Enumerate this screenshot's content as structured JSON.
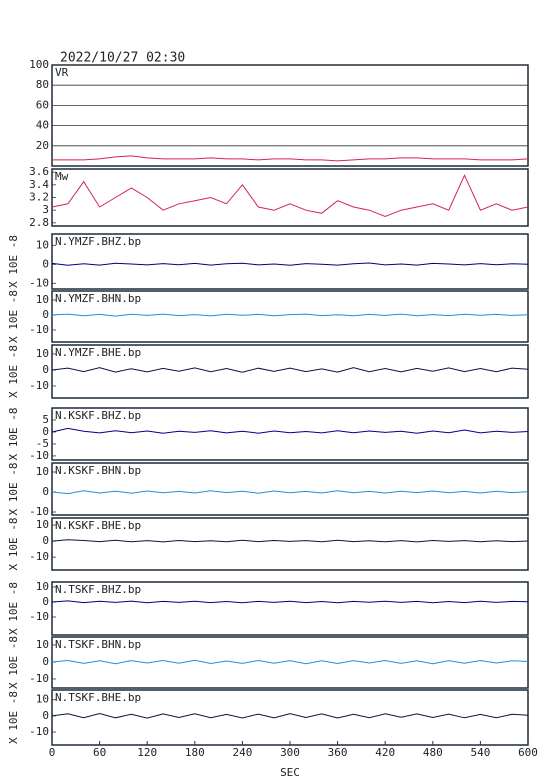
{
  "chart_data": [
    {
      "type": "line",
      "title": "2022/10/27 02:30",
      "label": "VR",
      "color": "#d6244e",
      "grid": true,
      "x": [
        0,
        20,
        40,
        60,
        80,
        100,
        120,
        140,
        160,
        180,
        200,
        220,
        240,
        260,
        280,
        300,
        320,
        340,
        360,
        380,
        400,
        420,
        440,
        460,
        480,
        500,
        520,
        540,
        560,
        580,
        600
      ],
      "values": [
        6,
        6,
        6,
        7,
        9,
        10,
        8,
        7,
        7,
        7,
        8,
        7,
        7,
        6,
        7,
        7,
        6,
        6,
        5,
        6,
        7,
        7,
        8,
        8,
        7,
        7,
        7,
        6,
        6,
        6,
        7
      ],
      "ylim": [
        0,
        100
      ],
      "yticks": [
        20,
        40,
        60,
        80,
        100
      ]
    },
    {
      "type": "line",
      "label": "Mw",
      "color": "#d6244e",
      "x": [
        0,
        20,
        40,
        60,
        80,
        100,
        120,
        140,
        160,
        180,
        200,
        220,
        240,
        260,
        280,
        300,
        320,
        340,
        360,
        380,
        400,
        420,
        440,
        460,
        480,
        500,
        520,
        540,
        560,
        580,
        600
      ],
      "values": [
        3.05,
        3.1,
        3.45,
        3.05,
        3.2,
        3.35,
        3.2,
        3.0,
        3.1,
        3.15,
        3.2,
        3.1,
        3.4,
        3.05,
        3.0,
        3.1,
        3.0,
        2.95,
        3.15,
        3.05,
        3.0,
        2.9,
        3.0,
        3.05,
        3.1,
        3.0,
        3.55,
        3.0,
        3.1,
        3.0,
        3.05
      ],
      "ylim": [
        2.75,
        3.65
      ],
      "yticks": [
        2.8,
        3.0,
        3.2,
        3.4,
        3.6
      ]
    },
    {
      "type": "line",
      "label": "N.YMZF.BHZ.bp",
      "ylabel": "X 10E -8",
      "color": "#00008b",
      "x": [
        0,
        20,
        40,
        60,
        80,
        100,
        120,
        140,
        160,
        180,
        200,
        220,
        240,
        260,
        280,
        300,
        320,
        340,
        360,
        380,
        400,
        420,
        440,
        460,
        480,
        500,
        520,
        540,
        560,
        580,
        600
      ],
      "values": [
        0.5,
        -0.5,
        0.3,
        -0.4,
        0.6,
        0.2,
        -0.3,
        0.4,
        -0.2,
        0.5,
        -0.4,
        0.3,
        0.6,
        -0.3,
        0.2,
        -0.5,
        0.4,
        0.1,
        -0.4,
        0.3,
        0.7,
        -0.3,
        0.2,
        -0.4,
        0.5,
        0.2,
        -0.3,
        0.4,
        -0.2,
        0.3,
        0.1
      ],
      "ylim": [
        -13,
        16
      ],
      "yticks": [
        -10,
        0,
        10
      ]
    },
    {
      "type": "line",
      "label": "N.YMZF.BHN.bp",
      "ylabel": "X 10E -8",
      "color": "#1f8fd8",
      "x": [
        0,
        20,
        40,
        60,
        80,
        100,
        120,
        140,
        160,
        180,
        200,
        220,
        240,
        260,
        280,
        300,
        320,
        340,
        360,
        380,
        400,
        420,
        440,
        460,
        480,
        500,
        520,
        540,
        560,
        580,
        600
      ],
      "values": [
        0,
        0.6,
        -0.5,
        0.4,
        -0.7,
        0.5,
        -0.3,
        0.6,
        -0.4,
        0.3,
        -0.6,
        0.5,
        -0.2,
        0.4,
        -0.5,
        0.3,
        0.6,
        -0.4,
        0.2,
        -0.5,
        0.4,
        -0.3,
        0.6,
        -0.5,
        0.3,
        -0.4,
        0.5,
        -0.2,
        0.4,
        -0.3,
        0.2
      ],
      "ylim": [
        -18,
        16
      ],
      "yticks": [
        -10,
        0,
        10
      ]
    },
    {
      "type": "line",
      "label": "N.YMZF.BHE.bp",
      "ylabel": "X 10E -8",
      "color": "#101040",
      "x": [
        0,
        20,
        40,
        60,
        80,
        100,
        120,
        140,
        160,
        180,
        200,
        220,
        240,
        260,
        280,
        300,
        320,
        340,
        360,
        380,
        400,
        420,
        440,
        460,
        480,
        500,
        520,
        540,
        560,
        580,
        600
      ],
      "values": [
        0,
        1.2,
        -1.0,
        1.5,
        -1.3,
        0.8,
        -1.2,
        1.0,
        -0.8,
        1.3,
        -1.1,
        0.9,
        -1.4,
        1.1,
        -0.9,
        1.2,
        -1.0,
        0.7,
        -1.3,
        1.4,
        -1.1,
        0.9,
        -1.2,
        1.0,
        -0.8,
        1.3,
        -1.0,
        0.9,
        -1.1,
        1.2,
        0.5
      ],
      "ylim": [
        -17.5,
        15.6
      ],
      "yticks": [
        -10,
        0,
        10
      ]
    },
    {
      "type": "line",
      "label": "N.KSKF.BHZ.bp",
      "ylabel": "X 10E -8",
      "color": "#00008b",
      "x": [
        0,
        20,
        40,
        60,
        80,
        100,
        120,
        140,
        160,
        180,
        200,
        220,
        240,
        260,
        280,
        300,
        320,
        340,
        360,
        380,
        400,
        420,
        440,
        460,
        480,
        500,
        520,
        540,
        560,
        580,
        600
      ],
      "values": [
        0,
        1.5,
        0.3,
        -0.4,
        0.5,
        -0.3,
        0.4,
        -0.5,
        0.3,
        -0.2,
        0.5,
        -0.4,
        0.3,
        -0.5,
        0.4,
        -0.3,
        0.2,
        -0.4,
        0.5,
        -0.3,
        0.4,
        -0.2,
        0.3,
        -0.5,
        0.4,
        -0.3,
        0.8,
        -0.4,
        0.3,
        -0.2,
        0.2
      ],
      "ylim": [
        -11.7,
        10
      ],
      "yticks": [
        -10,
        -5,
        0,
        5
      ]
    },
    {
      "type": "line",
      "label": "N.KSKF.BHN.bp",
      "ylabel": "X 10E -8",
      "color": "#1f8fd8",
      "x": [
        0,
        20,
        40,
        60,
        80,
        100,
        120,
        140,
        160,
        180,
        200,
        220,
        240,
        260,
        280,
        300,
        320,
        340,
        360,
        380,
        400,
        420,
        440,
        460,
        480,
        500,
        520,
        540,
        560,
        580,
        600
      ],
      "values": [
        0,
        -0.8,
        0.6,
        -0.5,
        0.4,
        -0.6,
        0.5,
        -0.4,
        0.3,
        -0.5,
        0.6,
        -0.3,
        0.4,
        -0.6,
        0.5,
        -0.4,
        0.3,
        -0.5,
        0.6,
        -0.4,
        0.3,
        -0.5,
        0.4,
        -0.3,
        0.5,
        -0.4,
        0.3,
        -0.5,
        0.4,
        -0.3,
        0.2
      ],
      "ylim": [
        -11.5,
        14.5
      ],
      "yticks": [
        -10,
        0,
        10
      ]
    },
    {
      "type": "line",
      "label": "N.KSKF.BHE.bp",
      "ylabel": "X 10E -8",
      "color": "#101040",
      "x": [
        0,
        20,
        40,
        60,
        80,
        100,
        120,
        140,
        160,
        180,
        200,
        220,
        240,
        260,
        280,
        300,
        320,
        340,
        360,
        380,
        400,
        420,
        440,
        460,
        480,
        500,
        520,
        540,
        560,
        580,
        600
      ],
      "values": [
        0,
        0.8,
        0.4,
        -0.3,
        0.5,
        -0.4,
        0.3,
        -0.5,
        0.4,
        -0.3,
        0.2,
        -0.4,
        0.5,
        -0.3,
        0.4,
        -0.2,
        0.3,
        -0.4,
        0.5,
        -0.3,
        0.2,
        -0.4,
        0.3,
        -0.5,
        0.4,
        -0.2,
        0.3,
        -0.4,
        0.2,
        -0.3,
        0.1
      ],
      "ylim": [
        -18,
        14.4
      ],
      "yticks": [
        -10,
        0,
        10
      ]
    },
    {
      "type": "line",
      "label": "N.TSKF.BHZ.bp",
      "ylabel": "X 10E -8",
      "color": "#00008b",
      "x": [
        0,
        20,
        40,
        60,
        80,
        100,
        120,
        140,
        160,
        180,
        200,
        220,
        240,
        260,
        280,
        300,
        320,
        340,
        360,
        380,
        400,
        420,
        440,
        460,
        480,
        500,
        520,
        540,
        560,
        580,
        600
      ],
      "values": [
        0,
        0.7,
        -0.4,
        0.5,
        -0.3,
        0.6,
        -0.5,
        0.4,
        -0.3,
        0.5,
        -0.4,
        0.3,
        -0.5,
        0.4,
        -0.3,
        0.5,
        -0.4,
        0.3,
        -0.5,
        0.4,
        -0.2,
        0.5,
        -0.3,
        0.4,
        -0.5,
        0.3,
        -0.4,
        0.5,
        -0.3,
        0.4,
        0.1
      ],
      "ylim": [
        -22,
        13.3
      ],
      "yticks": [
        -10,
        0,
        10
      ]
    },
    {
      "type": "line",
      "label": "N.TSKF.BHN.bp",
      "ylabel": "X 10E -8",
      "color": "#1f8fd8",
      "x": [
        0,
        20,
        40,
        60,
        80,
        100,
        120,
        140,
        160,
        180,
        200,
        220,
        240,
        260,
        280,
        300,
        320,
        340,
        360,
        380,
        400,
        420,
        440,
        460,
        480,
        500,
        520,
        540,
        560,
        580,
        600
      ],
      "values": [
        0,
        0.9,
        -0.8,
        0.7,
        -1.0,
        0.8,
        -0.6,
        0.9,
        -0.7,
        1.0,
        -0.9,
        0.6,
        -0.8,
        0.9,
        -0.7,
        0.8,
        -1.0,
        0.7,
        -0.9,
        0.8,
        -0.6,
        0.9,
        -0.8,
        0.7,
        -1.0,
        0.8,
        -0.7,
        0.9,
        -0.6,
        0.7,
        0.3
      ],
      "ylim": [
        -15.3,
        14.7
      ],
      "yticks": [
        -10,
        0,
        10
      ]
    },
    {
      "type": "line",
      "label": "N.TSKF.BHE.bp",
      "ylabel": "X 10E -8",
      "color": "#101040",
      "x": [
        0,
        20,
        40,
        60,
        80,
        100,
        120,
        140,
        160,
        180,
        200,
        220,
        240,
        260,
        280,
        300,
        320,
        340,
        360,
        380,
        400,
        420,
        440,
        460,
        480,
        500,
        520,
        540,
        560,
        580,
        600
      ],
      "values": [
        0,
        1.3,
        -1.1,
        1.5,
        -1.2,
        1.0,
        -1.4,
        1.2,
        -1.0,
        1.3,
        -1.1,
        0.9,
        -1.3,
        1.1,
        -1.2,
        1.4,
        -1.0,
        1.2,
        -1.3,
        1.0,
        -1.1,
        1.3,
        -0.9,
        1.2,
        -1.0,
        1.1,
        -1.2,
        0.9,
        -1.1,
        1.0,
        0.4
      ],
      "ylim": [
        -18,
        16
      ],
      "yticks": [
        -10,
        0,
        10
      ],
      "xlabel": "SEC",
      "xlim": [
        0,
        600
      ],
      "xticks": [
        0,
        60,
        120,
        180,
        240,
        300,
        360,
        420,
        480,
        540,
        600
      ]
    }
  ]
}
